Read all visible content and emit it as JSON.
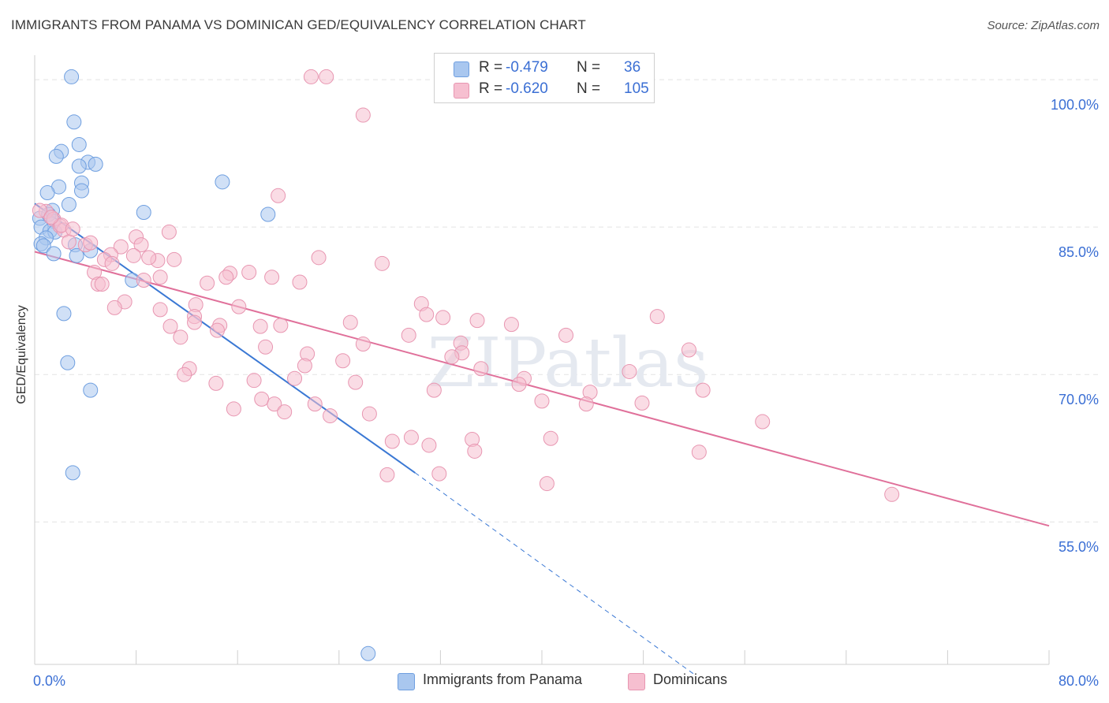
{
  "title": "IMMIGRANTS FROM PANAMA VS DOMINICAN GED/EQUIVALENCY CORRELATION CHART",
  "source": "Source: ZipAtlas.com",
  "watermark": "ZIPatlas",
  "legend": {
    "rows": [
      {
        "r_label": "R =",
        "r_value": "-0.479",
        "n_label": "N =",
        "n_value": "36",
        "color": "#a9c7ef",
        "border": "#6f9fe0"
      },
      {
        "r_label": "R =",
        "r_value": "-0.620",
        "n_label": "N =",
        "n_value": "105",
        "color": "#f6bfd0",
        "border": "#e896b1"
      }
    ]
  },
  "bottom_legend": [
    {
      "label": "Immigrants from Panama",
      "color": "#a9c7ef",
      "border": "#6f9fe0"
    },
    {
      "label": "Dominicans",
      "color": "#f6bfd0",
      "border": "#e896b1"
    }
  ],
  "chart_data": {
    "type": "scatter",
    "title": "IMMIGRANTS FROM PANAMA VS DOMINICAN GED/EQUIVALENCY CORRELATION CHART",
    "xlabel": "",
    "ylabel": "GED/Equivalency",
    "xlim": [
      0,
      80
    ],
    "ylim": [
      40.5,
      102.5
    ],
    "x_tick_labels": [
      {
        "value": 0,
        "label": "0.0%"
      },
      {
        "value": 80,
        "label": "80.0%"
      }
    ],
    "y_tick_labels": [
      {
        "value": 100,
        "label": "100.0%"
      },
      {
        "value": 85,
        "label": "85.0%"
      },
      {
        "value": 70,
        "label": "70.0%"
      },
      {
        "value": 55,
        "label": "55.0%"
      }
    ],
    "grid": true,
    "legend_position": "top-center",
    "series": [
      {
        "name": "Immigrants from Panama",
        "color": "#a9c7ef",
        "stroke": "#6f9fe0",
        "trend": {
          "x": [
            0,
            30
          ],
          "y": [
            87.4,
            60.0
          ],
          "color": "#3a78d4",
          "dash_to": [
            52,
            39.5
          ]
        },
        "points": [
          [
            2.9,
            100.3
          ],
          [
            3.1,
            95.7
          ],
          [
            3.5,
            93.4
          ],
          [
            2.1,
            92.7
          ],
          [
            1.7,
            92.2
          ],
          [
            4.2,
            91.6
          ],
          [
            4.8,
            91.4
          ],
          [
            3.5,
            91.2
          ],
          [
            3.7,
            89.5
          ],
          [
            14.8,
            89.6
          ],
          [
            1.9,
            89.1
          ],
          [
            1.0,
            88.5
          ],
          [
            3.7,
            88.7
          ],
          [
            2.7,
            87.3
          ],
          [
            1.4,
            86.7
          ],
          [
            8.6,
            86.5
          ],
          [
            18.4,
            86.3
          ],
          [
            0.4,
            85.9
          ],
          [
            1.1,
            86.3
          ],
          [
            0.5,
            85.0
          ],
          [
            1.5,
            85.6
          ],
          [
            1.2,
            84.6
          ],
          [
            1.6,
            84.5
          ],
          [
            0.9,
            83.9
          ],
          [
            0.5,
            83.3
          ],
          [
            0.7,
            83.1
          ],
          [
            4.4,
            82.6
          ],
          [
            3.2,
            83.2
          ],
          [
            1.5,
            82.3
          ],
          [
            3.3,
            82.1
          ],
          [
            7.7,
            79.6
          ],
          [
            2.3,
            76.2
          ],
          [
            2.6,
            71.2
          ],
          [
            4.4,
            68.4
          ],
          [
            3.0,
            60.0
          ],
          [
            26.3,
            41.6
          ]
        ]
      },
      {
        "name": "Dominicans",
        "color": "#f6bfd0",
        "stroke": "#e896b1",
        "trend": {
          "x": [
            0,
            80
          ],
          "y": [
            82.5,
            54.6
          ],
          "color": "#e0709a"
        },
        "points": [
          [
            21.8,
            100.3
          ],
          [
            23.0,
            100.3
          ],
          [
            25.9,
            96.4
          ],
          [
            19.2,
            88.2
          ],
          [
            0.9,
            86.6
          ],
          [
            1.5,
            85.8
          ],
          [
            2.0,
            85.1
          ],
          [
            10.6,
            84.5
          ],
          [
            2.3,
            84.7
          ],
          [
            8.0,
            84.0
          ],
          [
            2.7,
            83.5
          ],
          [
            4.0,
            83.2
          ],
          [
            4.4,
            83.4
          ],
          [
            8.4,
            83.2
          ],
          [
            6.8,
            83.0
          ],
          [
            9.7,
            81.6
          ],
          [
            22.4,
            81.9
          ],
          [
            6.0,
            82.2
          ],
          [
            7.8,
            82.1
          ],
          [
            9.0,
            81.9
          ],
          [
            5.5,
            81.7
          ],
          [
            6.1,
            81.3
          ],
          [
            27.4,
            81.3
          ],
          [
            11.0,
            81.7
          ],
          [
            4.7,
            80.4
          ],
          [
            15.4,
            80.3
          ],
          [
            16.9,
            80.4
          ],
          [
            9.9,
            79.9
          ],
          [
            15.1,
            79.9
          ],
          [
            18.7,
            79.9
          ],
          [
            8.6,
            79.6
          ],
          [
            5.0,
            79.2
          ],
          [
            5.3,
            79.2
          ],
          [
            13.6,
            79.3
          ],
          [
            20.9,
            79.4
          ],
          [
            12.7,
            77.1
          ],
          [
            7.1,
            77.4
          ],
          [
            30.5,
            77.2
          ],
          [
            16.1,
            76.9
          ],
          [
            6.3,
            76.8
          ],
          [
            9.9,
            76.6
          ],
          [
            12.6,
            75.9
          ],
          [
            30.9,
            76.1
          ],
          [
            34.9,
            75.5
          ],
          [
            32.2,
            75.8
          ],
          [
            49.1,
            75.9
          ],
          [
            12.6,
            75.3
          ],
          [
            19.4,
            75.0
          ],
          [
            14.6,
            75.0
          ],
          [
            24.9,
            75.3
          ],
          [
            37.6,
            75.1
          ],
          [
            10.7,
            74.9
          ],
          [
            17.8,
            74.9
          ],
          [
            14.4,
            74.5
          ],
          [
            11.5,
            73.8
          ],
          [
            29.5,
            74.0
          ],
          [
            41.9,
            74.0
          ],
          [
            33.6,
            73.2
          ],
          [
            25.9,
            73.1
          ],
          [
            18.2,
            72.8
          ],
          [
            51.6,
            72.5
          ],
          [
            21.5,
            72.1
          ],
          [
            33.7,
            72.2
          ],
          [
            32.9,
            71.8
          ],
          [
            12.2,
            70.6
          ],
          [
            24.3,
            71.4
          ],
          [
            21.3,
            70.9
          ],
          [
            35.2,
            70.6
          ],
          [
            46.9,
            70.3
          ],
          [
            11.8,
            70.0
          ],
          [
            38.6,
            69.6
          ],
          [
            25.3,
            69.2
          ],
          [
            38.2,
            69.0
          ],
          [
            14.3,
            69.1
          ],
          [
            17.3,
            69.4
          ],
          [
            20.5,
            69.6
          ],
          [
            52.7,
            68.4
          ],
          [
            31.5,
            68.4
          ],
          [
            43.8,
            68.2
          ],
          [
            40.0,
            67.3
          ],
          [
            47.9,
            67.1
          ],
          [
            17.9,
            67.5
          ],
          [
            43.5,
            67.0
          ],
          [
            22.1,
            67.0
          ],
          [
            18.9,
            67.0
          ],
          [
            15.7,
            66.5
          ],
          [
            19.7,
            66.2
          ],
          [
            23.3,
            65.8
          ],
          [
            26.4,
            66.0
          ],
          [
            57.4,
            65.2
          ],
          [
            28.2,
            63.2
          ],
          [
            29.7,
            63.6
          ],
          [
            34.5,
            63.4
          ],
          [
            40.7,
            63.5
          ],
          [
            31.1,
            62.8
          ],
          [
            34.7,
            62.2
          ],
          [
            52.4,
            62.1
          ],
          [
            27.8,
            59.8
          ],
          [
            31.9,
            59.9
          ],
          [
            40.4,
            58.9
          ],
          [
            67.6,
            57.8
          ],
          [
            0.4,
            86.7
          ],
          [
            2.1,
            85.2
          ],
          [
            1.3,
            86.0
          ],
          [
            3.0,
            84.8
          ]
        ]
      }
    ]
  }
}
